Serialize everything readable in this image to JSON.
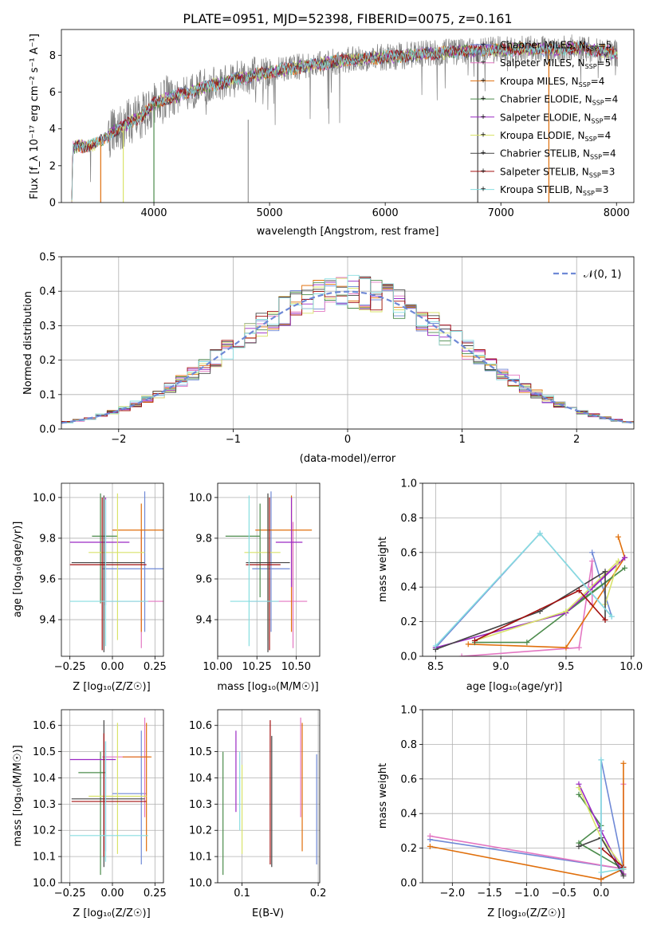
{
  "title": "PLATE=0951, MJD=52398, FIBERID=0075, z=0.161",
  "colors": [
    "#6f89d6",
    "#e377c2",
    "#e06f0b",
    "#4b8b4b",
    "#9b29c4",
    "#d9e36a",
    "#444444",
    "#a31010",
    "#87dde0"
  ],
  "chart_data": [
    {
      "id": "spectrum",
      "type": "line",
      "xlabel": "wavelength [Angstrom, rest frame]",
      "ylabel": "Flux [f_λ 10⁻¹⁷ erg cm⁻² s⁻¹ A⁻¹]",
      "xlim": [
        3200,
        8150
      ],
      "ylim": [
        0,
        9.4
      ],
      "xticks": [
        "4000",
        "5000",
        "6000",
        "7000",
        "8000"
      ],
      "yticks": [
        "0",
        "2",
        "4",
        "6",
        "8"
      ],
      "grid": false,
      "legend": "top-right",
      "series": [
        {
          "name": "Chabrier MILES, N_SSP=5"
        },
        {
          "name": "Salpeter MILES, N_SSP=5"
        },
        {
          "name": "Kroupa MILES, N_SSP=4"
        },
        {
          "name": "Chabrier ELODIE, N_SSP=4"
        },
        {
          "name": "Salpeter ELODIE, N_SSP=4"
        },
        {
          "name": "Kroupa ELODIE, N_SSP=4"
        },
        {
          "name": "Chabrier STELIB, N_SSP=4"
        },
        {
          "name": "Salpeter STELIB, N_SSP=3"
        },
        {
          "name": "Kroupa STELIB, N_SSP=3"
        }
      ],
      "model_continuum": {
        "x": [
          3290,
          3300,
          3350,
          3400,
          3450,
          3500,
          3550,
          3600,
          3650,
          3700,
          3750,
          3800,
          3850,
          3900,
          3950,
          4000,
          4100,
          4200,
          4300,
          4400,
          4500,
          4600,
          4700,
          4800,
          4900,
          5000,
          5100,
          5200,
          5300,
          5400,
          5500,
          5600,
          5700,
          5800,
          5900,
          6000,
          6100,
          6200,
          6300,
          6400,
          6500,
          6600,
          6700,
          6800,
          6900,
          7000,
          7100,
          7200,
          7300,
          7400,
          7500,
          7600,
          7700,
          7800,
          7900,
          8000
        ],
        "y": [
          0.2,
          3.0,
          3.1,
          3.0,
          3.1,
          3.2,
          3.4,
          3.6,
          3.9,
          4.0,
          4.2,
          4.4,
          4.5,
          4.7,
          5.0,
          5.4,
          5.6,
          5.8,
          6.0,
          6.2,
          6.4,
          6.5,
          6.7,
          6.8,
          7.0,
          7.1,
          7.2,
          7.3,
          7.4,
          7.5,
          7.6,
          7.7,
          7.75,
          7.8,
          7.85,
          7.9,
          7.95,
          8.0,
          8.05,
          8.1,
          8.15,
          8.2,
          8.2,
          8.25,
          8.3,
          8.3,
          8.3,
          8.35,
          8.35,
          8.3,
          8.3,
          8.4,
          8.4,
          8.3,
          8.2,
          8.1
        ]
      }
    },
    {
      "id": "residuals",
      "type": "area",
      "xlabel": "(data-model)/error",
      "ylabel": "Normed distribution",
      "xlim": [
        -2.5,
        2.5
      ],
      "ylim": [
        0,
        0.5
      ],
      "xticks": [
        "−2",
        "−1",
        "0",
        "1",
        "2"
      ],
      "yticks": [
        "0.0",
        "0.1",
        "0.2",
        "0.3",
        "0.4",
        "0.5"
      ],
      "grid": true,
      "legend": "top-right",
      "reference": {
        "name": "𝒩(0, 1)",
        "mean": 0,
        "sigma": 1
      },
      "bin_width": 0.1
    },
    {
      "id": "age-vs-Z",
      "type": "scatter",
      "xlabel": "Z [log₁₀(Z/Z☉)]",
      "ylabel": "age  [log₁₀(age/yr)]",
      "xlim": [
        -0.3,
        0.3
      ],
      "ylim": [
        9.22,
        10.07
      ],
      "xticks": [
        "−0.25",
        "0.00",
        "0.25"
      ],
      "yticks": [
        "9.4",
        "9.6",
        "9.8",
        "10.0"
      ],
      "grid": true,
      "errorbars": [
        {
          "x": 0.19,
          "y": 9.65,
          "xerr": [
            0.25,
            0.13
          ],
          "yerr": [
            0.31,
            0.38
          ]
        },
        {
          "x": 0.17,
          "y": 9.49,
          "xerr": [
            0.24,
            0.15
          ],
          "yerr": [
            0.23,
            0.35
          ]
        },
        {
          "x": 0.17,
          "y": 9.84,
          "xerr": [
            0.17,
            0.21
          ],
          "yerr": [
            0.5,
            0.13
          ]
        },
        {
          "x": -0.07,
          "y": 9.81,
          "xerr": [
            0.05,
            0.1
          ],
          "yerr": [
            0.33,
            0.21
          ]
        },
        {
          "x": -0.04,
          "y": 9.78,
          "xerr": [
            0.21,
            0.14
          ],
          "yerr": [
            0.31,
            0.22
          ]
        },
        {
          "x": 0.03,
          "y": 9.73,
          "xerr": [
            0.17,
            0.16
          ],
          "yerr": [
            0.43,
            0.29
          ]
        },
        {
          "x": -0.05,
          "y": 9.68,
          "xerr": [
            0.19,
            0.24
          ],
          "yerr": [
            0.44,
            0.33
          ]
        },
        {
          "x": -0.06,
          "y": 9.67,
          "xerr": [
            0.19,
            0.26
          ],
          "yerr": [
            0.42,
            0.33
          ]
        },
        {
          "x": -0.04,
          "y": 9.49,
          "xerr": [
            0.21,
            0.25
          ],
          "yerr": [
            0.22,
            0.5
          ]
        }
      ]
    },
    {
      "id": "age-vs-mass",
      "type": "scatter",
      "xlabel": "mass [log₁₀(M/M☉)]",
      "ylabel": "",
      "xlim": [
        10.0,
        10.65
      ],
      "ylim": [
        9.22,
        10.07
      ],
      "xticks": [
        "10.00",
        "10.25",
        "10.50"
      ],
      "yticks": [
        "9.4",
        "9.6",
        "9.8",
        "10.0"
      ],
      "grid": true,
      "errorbars": [
        {
          "x": 10.34,
          "y": 9.65,
          "xerr": [
            0.12,
            0.12
          ],
          "yerr": [
            0.31,
            0.38
          ]
        },
        {
          "x": 10.48,
          "y": 9.49,
          "xerr": [
            0.28,
            0.09
          ],
          "yerr": [
            0.23,
            0.39
          ]
        },
        {
          "x": 10.47,
          "y": 9.84,
          "xerr": [
            0.23,
            0.13
          ],
          "yerr": [
            0.5,
            0.17
          ]
        },
        {
          "x": 10.27,
          "y": 9.81,
          "xerr": [
            0.22,
            0.0
          ],
          "yerr": [
            0.3,
            0.16
          ]
        },
        {
          "x": 10.47,
          "y": 9.78,
          "xerr": [
            0.1,
            0.07
          ],
          "yerr": [
            0.22,
            0.22
          ]
        },
        {
          "x": 10.32,
          "y": 9.73,
          "xerr": [
            0.15,
            0.08
          ],
          "yerr": [
            0.43,
            0.28
          ]
        },
        {
          "x": 10.32,
          "y": 9.68,
          "xerr": [
            0.14,
            0.14
          ],
          "yerr": [
            0.44,
            0.34
          ]
        },
        {
          "x": 10.33,
          "y": 9.67,
          "xerr": [
            0.15,
            0.07
          ],
          "yerr": [
            0.42,
            0.33
          ]
        },
        {
          "x": 10.2,
          "y": 9.49,
          "xerr": [
            0.12,
            0.19
          ],
          "yerr": [
            0.22,
            0.52
          ]
        }
      ]
    },
    {
      "id": "weight-vs-age",
      "type": "line",
      "xlabel": "age  [log₁₀(age/yr)]",
      "ylabel": "mass weight",
      "xlim": [
        8.4,
        10.02
      ],
      "ylim": [
        0,
        1.0
      ],
      "xticks": [
        "8.5",
        "9.0",
        "9.5",
        "10.0"
      ],
      "yticks": [
        "0.0",
        "0.2",
        "0.4",
        "0.6",
        "0.8",
        "1.0"
      ],
      "grid": true,
      "series": [
        {
          "x": [
            8.5,
            9.3,
            9.85,
            9.7
          ],
          "y": [
            0.05,
            0.71,
            0.23,
            0.6
          ]
        },
        {
          "x": [
            8.7,
            9.6,
            9.7,
            9.7
          ],
          "y": [
            0.0,
            0.05,
            0.55,
            0.3
          ]
        },
        {
          "x": [
            8.75,
            9.5,
            9.95,
            9.9
          ],
          "y": [
            0.07,
            0.05,
            0.57,
            0.69
          ]
        },
        {
          "x": [
            8.8,
            9.2,
            9.95,
            9.5
          ],
          "y": [
            0.08,
            0.08,
            0.51,
            0.26
          ]
        },
        {
          "x": [
            8.5,
            9.5,
            9.95,
            9.7
          ],
          "y": [
            0.05,
            0.25,
            0.57,
            0.4
          ]
        },
        {
          "x": [
            8.8,
            9.5,
            9.9,
            9.8
          ],
          "y": [
            0.09,
            0.26,
            0.55,
            0.3
          ]
        },
        {
          "x": [
            8.5,
            9.3,
            9.8,
            9.8
          ],
          "y": [
            0.04,
            0.26,
            0.49,
            0.21
          ]
        },
        {
          "x": [
            8.8,
            9.6,
            9.8
          ],
          "y": [
            0.09,
            0.38,
            0.21
          ]
        },
        {
          "x": [
            8.5,
            9.3,
            9.85
          ],
          "y": [
            0.06,
            0.71,
            0.23
          ]
        }
      ]
    },
    {
      "id": "mass-vs-Z",
      "type": "scatter",
      "xlabel": "Z [log₁₀(Z/Z☉)]",
      "ylabel": "mass [log₁₀(M/M☉)]",
      "xlim": [
        -0.3,
        0.3
      ],
      "ylim": [
        10.0,
        10.66
      ],
      "xticks": [
        "−0.25",
        "0.00",
        "0.25"
      ],
      "yticks": [
        "10.0",
        "10.1",
        "10.2",
        "10.3",
        "10.4",
        "10.5",
        "10.6"
      ],
      "grid": true,
      "errorbars": [
        {
          "x": 0.17,
          "y": 10.34,
          "xerr": [
            0.17,
            0.03
          ],
          "yerr": [
            0.27,
            0.24
          ]
        },
        {
          "x": 0.19,
          "y": 10.48,
          "xerr": [
            0.25,
            0.03
          ],
          "yerr": [
            0.23,
            0.15
          ]
        },
        {
          "x": 0.2,
          "y": 10.48,
          "xerr": [
            0.14,
            0.03
          ],
          "yerr": [
            0.36,
            0.13
          ]
        },
        {
          "x": -0.07,
          "y": 10.42,
          "xerr": [
            0.13,
            0.03
          ],
          "yerr": [
            0.39,
            0.08
          ]
        },
        {
          "x": -0.04,
          "y": 10.47,
          "xerr": [
            0.21,
            0.06
          ],
          "yerr": [
            0.35,
            0.07
          ]
        },
        {
          "x": 0.03,
          "y": 10.33,
          "xerr": [
            0.17,
            0.17
          ],
          "yerr": [
            0.22,
            0.28
          ]
        },
        {
          "x": -0.05,
          "y": 10.32,
          "xerr": [
            0.19,
            0.24
          ],
          "yerr": [
            0.26,
            0.3
          ]
        },
        {
          "x": -0.05,
          "y": 10.31,
          "xerr": [
            0.19,
            0.25
          ],
          "yerr": [
            0.21,
            0.26
          ]
        },
        {
          "x": -0.04,
          "y": 10.18,
          "xerr": [
            0.21,
            0.25
          ],
          "yerr": [
            0.1,
            0.36
          ]
        }
      ]
    },
    {
      "id": "mass-vs-EBV",
      "type": "scatter",
      "xlabel": "E(B-V)",
      "ylabel": "",
      "xlim": [
        0.068,
        0.202
      ],
      "ylim": [
        10.0,
        10.66
      ],
      "xticks": [
        "0.1",
        "0.2"
      ],
      "yticks": [
        "10.0",
        "10.1",
        "10.2",
        "10.3",
        "10.4",
        "10.5",
        "10.6"
      ],
      "grid": true,
      "errorbars": [
        {
          "x": 0.198,
          "y": 10.28,
          "yerr": [
            0.21,
            0.21
          ]
        },
        {
          "x": 0.177,
          "y": 10.45,
          "yerr": [
            0.2,
            0.18
          ]
        },
        {
          "x": 0.179,
          "y": 10.37,
          "yerr": [
            0.25,
            0.24
          ]
        },
        {
          "x": 0.075,
          "y": 10.25,
          "yerr": [
            0.22,
            0.25
          ]
        },
        {
          "x": 0.092,
          "y": 10.42,
          "yerr": [
            0.15,
            0.16
          ]
        },
        {
          "x": 0.1,
          "y": 10.28,
          "yerr": [
            0.17,
            0.17
          ]
        },
        {
          "x": 0.139,
          "y": 10.31,
          "yerr": [
            0.25,
            0.25
          ]
        },
        {
          "x": 0.137,
          "y": 10.31,
          "yerr": [
            0.24,
            0.31
          ]
        },
        {
          "x": 0.097,
          "y": 10.3,
          "yerr": [
            0.1,
            0.2
          ]
        }
      ]
    },
    {
      "id": "weight-vs-Z",
      "type": "line",
      "xlabel": "Z [log₁₀(Z/Z☉)]",
      "ylabel": "mass weight",
      "xlim": [
        -2.4,
        0.44
      ],
      "ylim": [
        0,
        1.0
      ],
      "xticks": [
        "−2.0",
        "−1.5",
        "−1.0",
        "−0.5",
        "0.0"
      ],
      "yticks": [
        "0.0",
        "0.2",
        "0.4",
        "0.6",
        "0.8",
        "1.0"
      ],
      "grid": true,
      "series": [
        {
          "x": [
            -2.3,
            0.3,
            0.0,
            0.0,
            0.3
          ],
          "y": [
            0.25,
            0.08,
            0.02,
            0.71,
            0.08
          ]
        },
        {
          "x": [
            -2.3,
            0.3,
            0.3,
            0.3
          ],
          "y": [
            0.27,
            0.08,
            0.57,
            0.08
          ]
        },
        {
          "x": [
            -2.3,
            0.0,
            0.3,
            0.3,
            0.3
          ],
          "y": [
            0.21,
            0.02,
            0.08,
            0.69,
            0.05
          ]
        },
        {
          "x": [
            -0.3,
            0.0,
            -0.3,
            0.3
          ],
          "y": [
            0.51,
            0.33,
            0.23,
            0.08
          ]
        },
        {
          "x": [
            -0.3,
            0.0,
            0.3
          ],
          "y": [
            0.57,
            0.3,
            0.05
          ]
        },
        {
          "x": [
            -0.3,
            0.0,
            0.3
          ],
          "y": [
            0.55,
            0.26,
            0.09
          ]
        },
        {
          "x": [
            -0.3,
            0.0,
            0.3
          ],
          "y": [
            0.21,
            0.26,
            0.04
          ]
        },
        {
          "x": [
            0.0,
            0.3
          ],
          "y": [
            0.2,
            0.09
          ]
        },
        {
          "x": [
            0.0,
            0.0,
            0.3
          ],
          "y": [
            0.71,
            0.06,
            0.08
          ]
        }
      ]
    }
  ]
}
